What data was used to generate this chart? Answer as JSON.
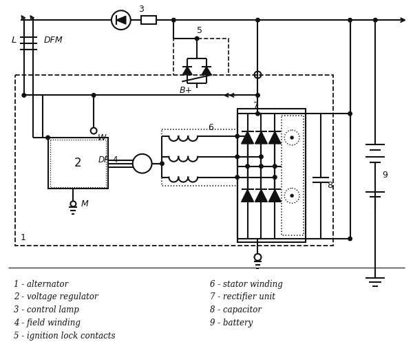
{
  "bg_color": "#ffffff",
  "line_color": "#111111",
  "legend_left": [
    "1 - alternator",
    "2 - voltage regulator",
    "3 - control lamp",
    "4 - field winding",
    "5 - ignition lock contacts"
  ],
  "legend_right": [
    "6 - stator winding",
    "7 - rectifier unit",
    "8 - capacitor",
    "9 - battery"
  ]
}
